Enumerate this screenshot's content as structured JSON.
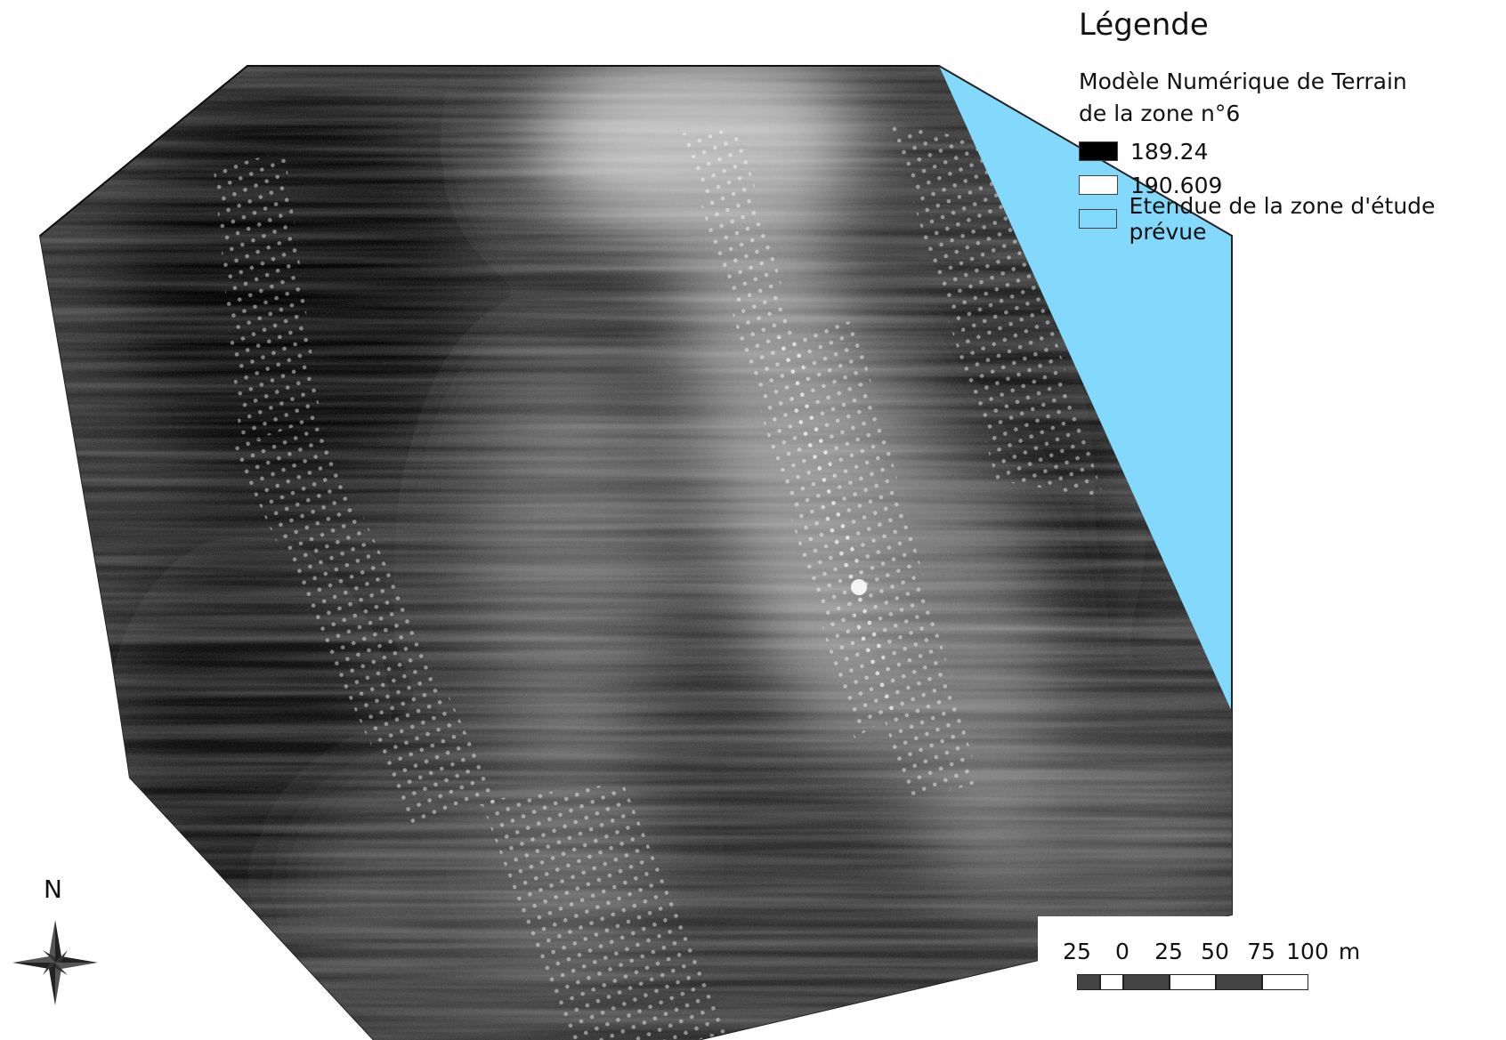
{
  "legend": {
    "title": "Légende",
    "subtitle_line1": "Modèle Numérique de Terrain",
    "subtitle_line2": "de la zone n°6",
    "items": [
      {
        "label": "189.24",
        "color": "#000000"
      },
      {
        "label": "190.609",
        "color": "#ffffff"
      },
      {
        "label": "Etendue de la zone d'étude prévue",
        "color": "#82d9fb"
      }
    ]
  },
  "scale_bar": {
    "labels": [
      "25",
      "0",
      "25",
      "50",
      "75",
      "100",
      "m"
    ],
    "segment_colors": [
      "#444444",
      "#ffffff",
      "#444444",
      "#ffffff",
      "#444444",
      "#ffffff"
    ]
  },
  "north": {
    "label": "N",
    "icon": "compass-rose-icon"
  },
  "colors": {
    "study_area": "#82d9fb",
    "dem_low": "#000000",
    "dem_high": "#ffffff"
  }
}
